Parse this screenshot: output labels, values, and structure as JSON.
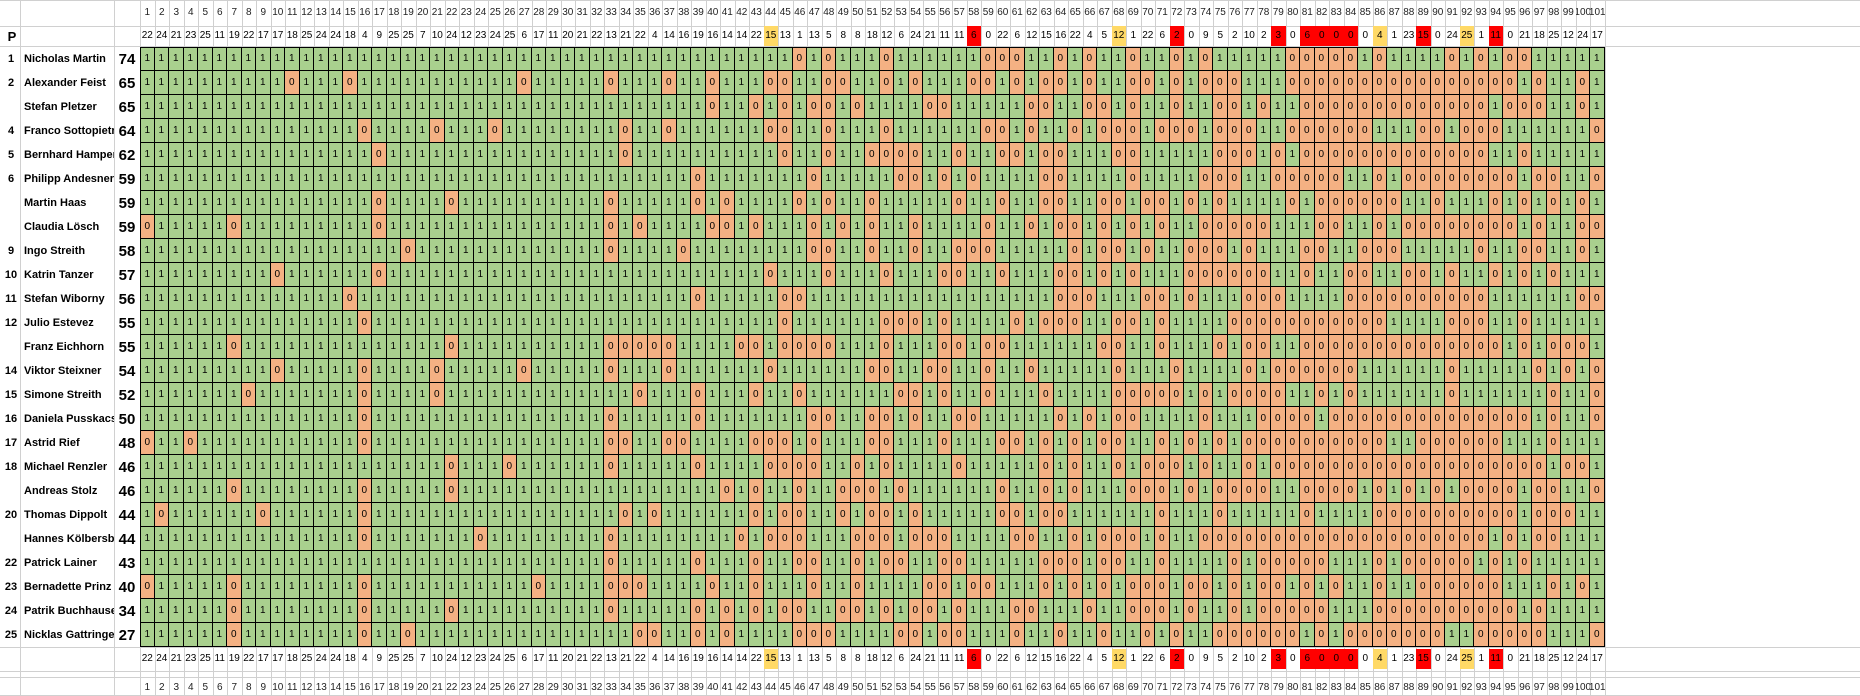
{
  "header_label": "P",
  "questions": [
    "1",
    "2",
    "3",
    "4",
    "5",
    "6",
    "7",
    "8",
    "9",
    "10",
    "11",
    "12",
    "13",
    "14",
    "15",
    "16",
    "17",
    "18",
    "19",
    "20",
    "21",
    "22",
    "23",
    "24",
    "25",
    "26",
    "27",
    "28",
    "29",
    "30",
    "31",
    "32",
    "33",
    "34",
    "35",
    "36",
    "37",
    "38",
    "39",
    "40",
    "41",
    "42",
    "43",
    "44",
    "45",
    "46",
    "47",
    "48",
    "49",
    "50",
    "51",
    "52",
    "53",
    "54",
    "55",
    "56",
    "57",
    "58",
    "59",
    "60",
    "61",
    "62",
    "63",
    "64",
    "65",
    "66",
    "67",
    "68",
    "69",
    "70",
    "71",
    "72",
    "73",
    "74",
    "75",
    "76",
    "77",
    "78",
    "79",
    "80",
    "81",
    "82",
    "83",
    "84",
    "85",
    "86",
    "87",
    "88",
    "89",
    "90",
    "91",
    "92",
    "93",
    "94",
    "95",
    "96",
    "97",
    "98",
    "99",
    "100",
    "101"
  ],
  "correct_counts": [
    "22",
    "24",
    "21",
    "23",
    "25",
    "11",
    "19",
    "22",
    "17",
    "17",
    "18",
    "25",
    "24",
    "24",
    "18",
    "4",
    "9",
    "25",
    "25",
    "7",
    "10",
    "24",
    "12",
    "23",
    "24",
    "25",
    "6",
    "17",
    "11",
    "20",
    "21",
    "22",
    "13",
    "21",
    "22",
    "4",
    "14",
    "16",
    "19",
    "16",
    "14",
    "14",
    "22",
    "15",
    "13",
    "1",
    "13",
    "5",
    "8",
    "8",
    "18",
    "12",
    "6",
    "24",
    "21",
    "11",
    "11",
    "6",
    "0",
    "22",
    "6",
    "12",
    "15",
    "16",
    "22",
    "4",
    "5",
    "12",
    "1",
    "22",
    "6",
    "2",
    "0",
    "9",
    "5",
    "2",
    "10",
    "2",
    "3",
    "0",
    "6",
    "0",
    "0",
    "0",
    "0",
    "4",
    "1",
    "23",
    "15",
    "0",
    "24",
    "25",
    "1",
    "11",
    "0",
    "21",
    "18",
    "25",
    "12",
    "24",
    "17"
  ],
  "count_highlights": {
    "yellow": [
      44,
      68,
      86,
      92
    ],
    "red": [
      58,
      72,
      79,
      81,
      82,
      83,
      84,
      89,
      94
    ]
  },
  "players": [
    {
      "rank": "1",
      "name": "Nicholas Martin",
      "score": "74"
    },
    {
      "rank": "2",
      "name": "Alexander Feist",
      "score": "65"
    },
    {
      "rank": "",
      "name": "Stefan Pletzer",
      "score": "65"
    },
    {
      "rank": "4",
      "name": "Franco Sottopietra",
      "score": "64"
    },
    {
      "rank": "5",
      "name": "Bernhard Hamperl",
      "score": "62"
    },
    {
      "rank": "6",
      "name": "Philipp Andesner",
      "score": "59"
    },
    {
      "rank": "",
      "name": "Martin Haas",
      "score": "59"
    },
    {
      "rank": "",
      "name": "Claudia Lösch",
      "score": "59"
    },
    {
      "rank": "9",
      "name": "Ingo Streith",
      "score": "58"
    },
    {
      "rank": "10",
      "name": "Katrin Tanzer",
      "score": "57"
    },
    {
      "rank": "11",
      "name": "Stefan Wiborny",
      "score": "56"
    },
    {
      "rank": "12",
      "name": "Julio Estevez",
      "score": "55"
    },
    {
      "rank": "",
      "name": "Franz Eichhorn",
      "score": "55"
    },
    {
      "rank": "14",
      "name": "Viktor Steixner",
      "score": "54"
    },
    {
      "rank": "15",
      "name": "Simone Streith",
      "score": "52"
    },
    {
      "rank": "16",
      "name": "Daniela Pusskacs",
      "score": "50"
    },
    {
      "rank": "17",
      "name": "Astrid Rief",
      "score": "48"
    },
    {
      "rank": "18",
      "name": "Michael Renzler",
      "score": "46"
    },
    {
      "rank": "",
      "name": "Andreas Stolz",
      "score": "46"
    },
    {
      "rank": "20",
      "name": "Thomas Dippolt",
      "score": "44"
    },
    {
      "rank": "",
      "name": "Hannes Kölbersberger",
      "score": "44"
    },
    {
      "rank": "22",
      "name": "Patrick Lainer",
      "score": "43"
    },
    {
      "rank": "23",
      "name": "Bernadette Prinz",
      "score": "40"
    },
    {
      "rank": "24",
      "name": "Patrik Buchhauser",
      "score": "34"
    },
    {
      "rank": "25",
      "name": "Nicklas Gattringer",
      "score": "27"
    }
  ],
  "results": [
    "11111111111111111111111111111111111111111111101011101111110001101011011010111110000010111101010011111",
    "11111111110111011111111111011111011101101110011001101011100101001011001010001110000000000000000101101",
    "11111111111111111111111111111111111111101101010010111100111110011001011011001011000000000000010001101",
    "11111111111111101111011101111111101101111110011011101111110010110100010001000110000001110010001111110",
    "11111111111111110111111111111111101111111111011011000011011001001110011111000101000000000000011011111",
    "11111111111111111111111111111111111111011111110111110010101111001111011110001100000110100000000100110",
    "11111111111111110111101111111111011111010111101011011111011011001100100101011110100000011011101010101",
    "01111101111111110111111111111111010111100101110101011011110110100101010110000011100110100000000101100",
    "11111111111111111101111111111111011110111111110011011011000111110100101100010111001100011111011001101",
    "11111111101111110111111111111111111111111110111011101110011011100101011100000011011001100101101010111",
    "11111111111111011111111111111111111111011111001111111111111111100011100101110001111000000000011111100",
    "11111111111111101111111111111111111111111111011111100010111101000110010111100000000000111100011011111",
    "11111101111111111111101111111111000001111001000011101110010011111100110111010011000000000000001010001",
    "11111111101111101111011111011111011101111110111111001100110110111110111011110100000011111101111101010",
    "11111110111111101111011111111111110111011101101111110010110111011110000010100001101011111101111110110",
    "11111111111111101111111111111111011111011111110011001011001111101010011110111000010000000000000010110",
    "01101111111111101111111111111111001100111100010111001110111001010100110101010000000000110000001110111",
    "11111111111111111111101110111111011111011110000110101111011111010110100010110100000000000000000001001",
    "11111101111111101111101111111111111111110101101100010111111011010111000101000011000010101010000100110",
    "10111111011111101111111111111111101011111101001101001011111001001111110111011111011110000000000100011",
    "11111111111111101111111011111111011111111010001110001000111100110100010110000000000000000000010100111",
    "11111111111111111111111111111111011111011101100110100110011111000100110111101000001110100000101011111",
    "01111101111111101111111111101111000111101101110110111100100111010101000100101001010110110000001110101",
    "11111101111111101111101111111111011111010101001100101001011100111011000101101000001110000000000101111",
    "11111101111111101101111111111111110011010111100011110010011101101101101011000000101000000011000001110"
  ]
}
